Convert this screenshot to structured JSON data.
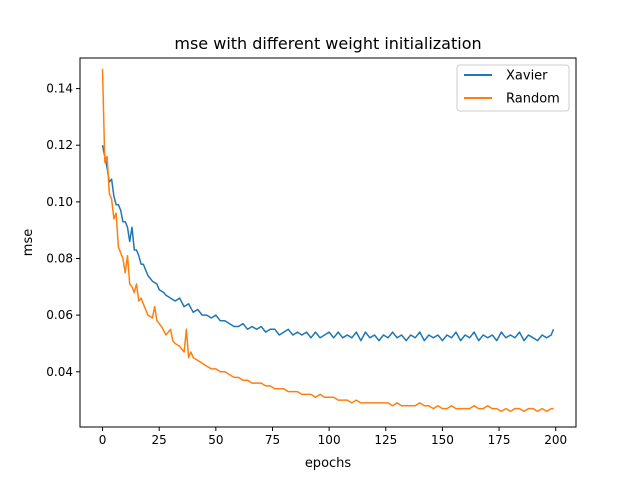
{
  "chart_data": {
    "type": "line",
    "title": "mse with different weight initialization",
    "xlabel": "epochs",
    "ylabel": "mse",
    "xlim": [
      -9.95,
      208.95
    ],
    "ylim": [
      0.0205,
      0.1508
    ],
    "x_ticks": [
      0,
      25,
      50,
      75,
      100,
      125,
      150,
      175,
      200
    ],
    "x_tick_labels": [
      "0",
      "25",
      "50",
      "75",
      "100",
      "125",
      "150",
      "175",
      "200"
    ],
    "y_ticks": [
      0.04,
      0.06,
      0.08,
      0.1,
      0.12,
      0.14
    ],
    "y_tick_labels": [
      "0.04",
      "0.06",
      "0.08",
      "0.10",
      "0.12",
      "0.14"
    ],
    "grid": false,
    "legend_position": "upper right",
    "series": [
      {
        "name": "Xavier",
        "color": "#1f77b4",
        "x": [
          0,
          2,
          3,
          4,
          5,
          6,
          7,
          8,
          9,
          10,
          11,
          12,
          13,
          14,
          15,
          16,
          17,
          18,
          19,
          20,
          22,
          24,
          25,
          27,
          28,
          30,
          32,
          34,
          36,
          38,
          40,
          42,
          44,
          46,
          48,
          50,
          52,
          54,
          56,
          58,
          60,
          62,
          64,
          66,
          68,
          70,
          72,
          74,
          76,
          78,
          80,
          82,
          84,
          86,
          88,
          90,
          92,
          94,
          96,
          98,
          100,
          102,
          104,
          106,
          108,
          110,
          112,
          114,
          116,
          118,
          120,
          122,
          124,
          126,
          128,
          130,
          132,
          134,
          136,
          138,
          140,
          142,
          144,
          146,
          148,
          150,
          152,
          154,
          156,
          158,
          160,
          162,
          164,
          166,
          168,
          170,
          172,
          174,
          176,
          178,
          180,
          182,
          184,
          186,
          188,
          190,
          192,
          194,
          196,
          198,
          199
        ],
        "y": [
          0.12,
          0.112,
          0.107,
          0.108,
          0.102,
          0.099,
          0.099,
          0.097,
          0.093,
          0.093,
          0.091,
          0.086,
          0.091,
          0.083,
          0.083,
          0.081,
          0.078,
          0.078,
          0.076,
          0.074,
          0.072,
          0.071,
          0.069,
          0.068,
          0.067,
          0.066,
          0.065,
          0.066,
          0.063,
          0.064,
          0.061,
          0.062,
          0.06,
          0.06,
          0.059,
          0.06,
          0.058,
          0.058,
          0.057,
          0.056,
          0.056,
          0.057,
          0.055,
          0.056,
          0.055,
          0.056,
          0.054,
          0.055,
          0.055,
          0.053,
          0.054,
          0.055,
          0.053,
          0.054,
          0.053,
          0.054,
          0.052,
          0.054,
          0.052,
          0.053,
          0.054,
          0.052,
          0.054,
          0.052,
          0.053,
          0.052,
          0.054,
          0.051,
          0.054,
          0.052,
          0.053,
          0.051,
          0.053,
          0.052,
          0.054,
          0.052,
          0.053,
          0.051,
          0.053,
          0.052,
          0.054,
          0.051,
          0.053,
          0.052,
          0.053,
          0.051,
          0.053,
          0.052,
          0.054,
          0.051,
          0.053,
          0.052,
          0.054,
          0.051,
          0.053,
          0.052,
          0.053,
          0.051,
          0.054,
          0.052,
          0.053,
          0.052,
          0.054,
          0.051,
          0.053,
          0.052,
          0.051,
          0.053,
          0.052,
          0.053,
          0.055
        ]
      },
      {
        "name": "Random",
        "color": "#ff7f0e",
        "x": [
          0,
          1,
          2,
          3,
          4,
          5,
          6,
          7,
          8,
          9,
          10,
          11,
          12,
          13,
          14,
          15,
          16,
          17,
          18,
          20,
          22,
          23,
          24,
          26,
          28,
          30,
          31,
          32,
          34,
          36,
          37,
          38,
          39,
          40,
          42,
          44,
          46,
          48,
          50,
          52,
          54,
          56,
          58,
          60,
          62,
          64,
          66,
          68,
          70,
          72,
          74,
          76,
          78,
          80,
          82,
          84,
          86,
          88,
          90,
          92,
          94,
          96,
          98,
          100,
          102,
          104,
          106,
          108,
          110,
          112,
          114,
          116,
          118,
          120,
          122,
          124,
          126,
          128,
          130,
          132,
          134,
          136,
          138,
          140,
          142,
          144,
          146,
          148,
          150,
          152,
          154,
          156,
          158,
          160,
          162,
          164,
          166,
          168,
          170,
          172,
          174,
          176,
          178,
          180,
          182,
          184,
          186,
          188,
          190,
          192,
          194,
          196,
          198,
          199
        ],
        "y": [
          0.147,
          0.114,
          0.116,
          0.103,
          0.101,
          0.094,
          0.096,
          0.084,
          0.082,
          0.08,
          0.075,
          0.081,
          0.071,
          0.07,
          0.068,
          0.071,
          0.065,
          0.066,
          0.064,
          0.06,
          0.059,
          0.063,
          0.058,
          0.056,
          0.053,
          0.055,
          0.051,
          0.05,
          0.049,
          0.047,
          0.055,
          0.045,
          0.047,
          0.045,
          0.044,
          0.043,
          0.042,
          0.041,
          0.041,
          0.04,
          0.04,
          0.039,
          0.038,
          0.038,
          0.037,
          0.037,
          0.036,
          0.036,
          0.036,
          0.035,
          0.035,
          0.034,
          0.034,
          0.034,
          0.033,
          0.033,
          0.033,
          0.032,
          0.032,
          0.032,
          0.031,
          0.032,
          0.031,
          0.031,
          0.031,
          0.03,
          0.03,
          0.03,
          0.029,
          0.03,
          0.029,
          0.029,
          0.029,
          0.029,
          0.029,
          0.029,
          0.029,
          0.028,
          0.029,
          0.028,
          0.028,
          0.028,
          0.028,
          0.029,
          0.028,
          0.028,
          0.027,
          0.028,
          0.027,
          0.027,
          0.028,
          0.027,
          0.027,
          0.027,
          0.027,
          0.028,
          0.027,
          0.027,
          0.028,
          0.027,
          0.027,
          0.026,
          0.027,
          0.026,
          0.027,
          0.027,
          0.026,
          0.027,
          0.027,
          0.026,
          0.027,
          0.026,
          0.027,
          0.027
        ]
      }
    ]
  }
}
